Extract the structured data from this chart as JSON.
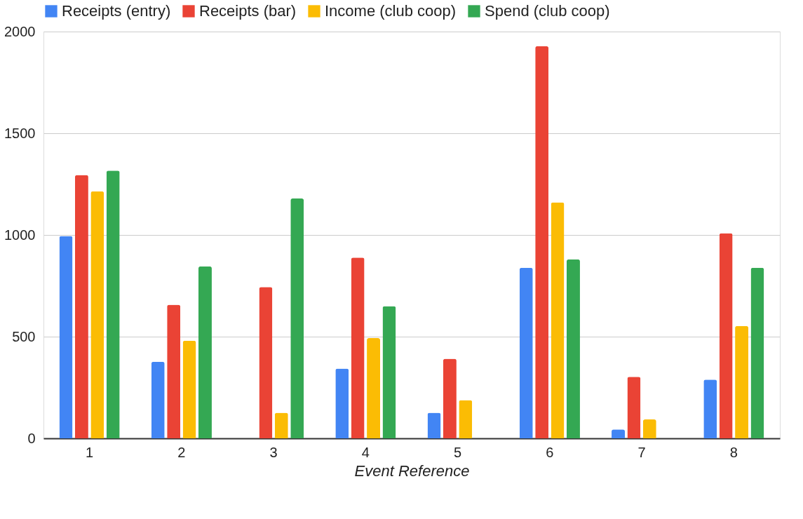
{
  "chart_data": {
    "type": "bar",
    "xlabel": "Event Reference",
    "categories": [
      "1",
      "2",
      "3",
      "4",
      "5",
      "6",
      "7",
      "8"
    ],
    "series": [
      {
        "name": "Receipts (entry)",
        "color": "#4285f4",
        "values": [
          995,
          377,
          null,
          343,
          126,
          839,
          44,
          289
        ]
      },
      {
        "name": "Receipts (bar)",
        "color": "#ea4335",
        "values": [
          1295,
          657,
          744,
          889,
          391,
          1928,
          303,
          1009
        ]
      },
      {
        "name": "Income (club coop)",
        "color": "#fbbc04",
        "values": [
          1214,
          480,
          126,
          493,
          188,
          1160,
          93,
          553
        ]
      },
      {
        "name": "Spend (club coop)",
        "color": "#34a853",
        "values": [
          1316,
          846,
          1179,
          650,
          null,
          880,
          null,
          839
        ]
      }
    ],
    "ylim": [
      0,
      2000
    ],
    "yticks": [
      0,
      500,
      1000,
      1500,
      2000
    ],
    "grid": "y",
    "legend": "top"
  }
}
